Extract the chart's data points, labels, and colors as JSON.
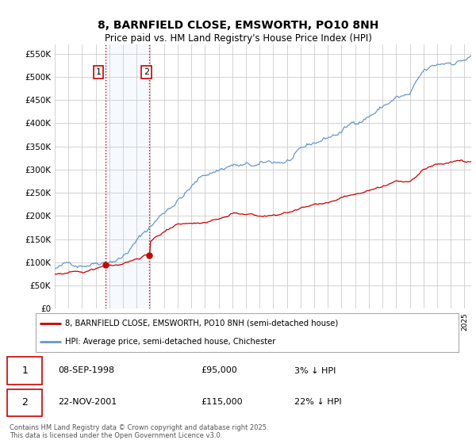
{
  "title": "8, BARNFIELD CLOSE, EMSWORTH, PO10 8NH",
  "subtitle": "Price paid vs. HM Land Registry's House Price Index (HPI)",
  "ylim": [
    0,
    570000
  ],
  "yticks": [
    0,
    50000,
    100000,
    150000,
    200000,
    250000,
    300000,
    350000,
    400000,
    450000,
    500000,
    550000
  ],
  "x_start_year": 1995,
  "x_end_year": 2025,
  "sale1_date": "08-SEP-1998",
  "sale1_price": 95000,
  "sale1_hpi_diff": "3% ↓ HPI",
  "sale1_year": 1998.69,
  "sale2_date": "22-NOV-2001",
  "sale2_price": 115000,
  "sale2_hpi_diff": "22% ↓ HPI",
  "sale2_year": 2001.9,
  "legend_label_red": "8, BARNFIELD CLOSE, EMSWORTH, PO10 8NH (semi-detached house)",
  "legend_label_blue": "HPI: Average price, semi-detached house, Chichester",
  "footer": "Contains HM Land Registry data © Crown copyright and database right 2025.\nThis data is licensed under the Open Government Licence v3.0.",
  "red_color": "#cc0000",
  "blue_color": "#6699cc",
  "shaded_color": "#ddeeff",
  "vline_color": "#cc0000",
  "grid_color": "#cccccc",
  "background_color": "#ffffff"
}
